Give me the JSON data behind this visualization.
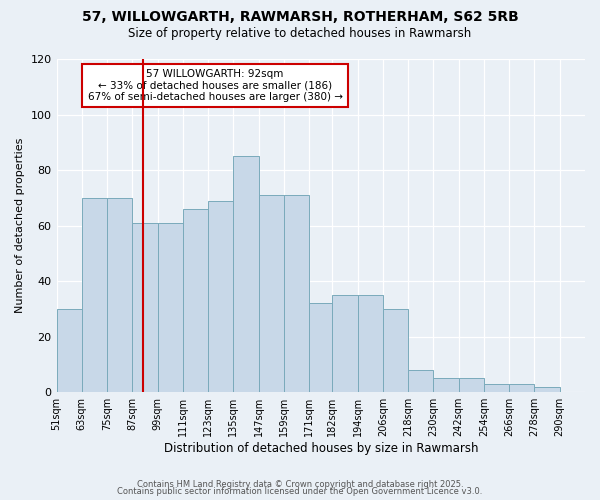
{
  "title": "57, WILLOWGARTH, RAWMARSH, ROTHERHAM, S62 5RB",
  "subtitle": "Size of property relative to detached houses in Rawmarsh",
  "xlabel": "Distribution of detached houses by size in Rawmarsh",
  "ylabel": "Number of detached properties",
  "bin_labels": [
    "51sqm",
    "63sqm",
    "75sqm",
    "87sqm",
    "99sqm",
    "111sqm",
    "123sqm",
    "135sqm",
    "147sqm",
    "159sqm",
    "171sqm",
    "182sqm",
    "194sqm",
    "206sqm",
    "218sqm",
    "230sqm",
    "242sqm",
    "254sqm",
    "266sqm",
    "278sqm",
    "290sqm"
  ],
  "bar_values": [
    30,
    70,
    70,
    61,
    61,
    66,
    69,
    85,
    71,
    71,
    32,
    35,
    35,
    30,
    8,
    5,
    5,
    3,
    3,
    2
  ],
  "bar_color": "#c8d8e8",
  "bar_edge_color": "#7aaabb",
  "vline_x": 92,
  "vline_color": "#cc0000",
  "annotation_title": "57 WILLOWGARTH: 92sqm",
  "annotation_line2": "← 33% of detached houses are smaller (186)",
  "annotation_line3": "67% of semi-detached houses are larger (380) →",
  "annotation_box_color": "#cc0000",
  "ylim": [
    0,
    120
  ],
  "yticks": [
    0,
    20,
    40,
    60,
    80,
    100,
    120
  ],
  "background_color": "#eaf0f6",
  "grid_color": "#ffffff",
  "footer1": "Contains HM Land Registry data © Crown copyright and database right 2025.",
  "footer2": "Contains public sector information licensed under the Open Government Licence v3.0.",
  "bin_edges": [
    51,
    63,
    75,
    87,
    99,
    111,
    123,
    135,
    147,
    159,
    171,
    182,
    194,
    206,
    218,
    230,
    242,
    254,
    266,
    278,
    290
  ]
}
